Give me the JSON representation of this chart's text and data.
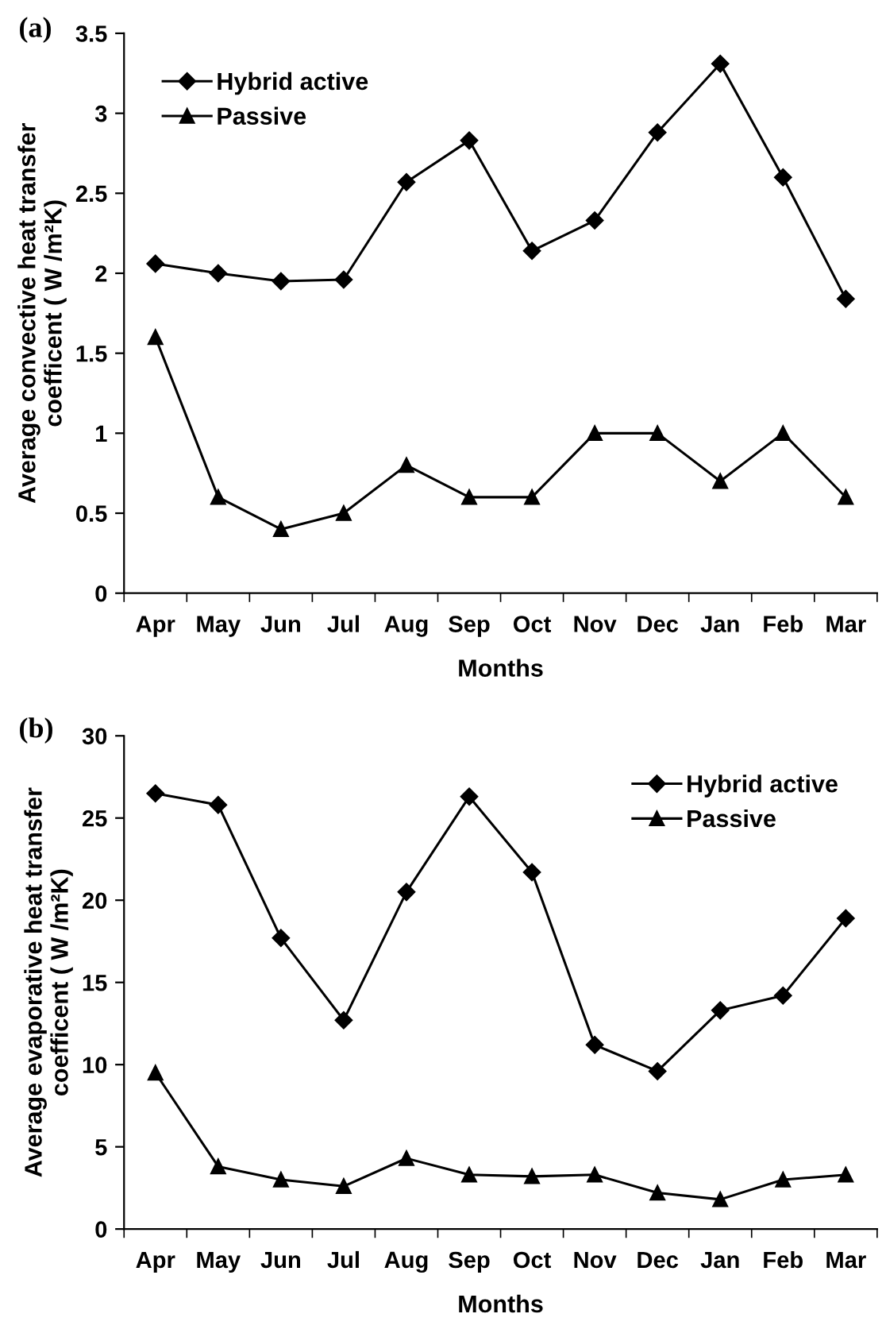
{
  "chart_data": [
    {
      "type": "line",
      "title": "(a)",
      "xlabel": "Months",
      "ylabel": "Average convective heat transfer\ncoefficent ( W /m²K)",
      "categories": [
        "Apr",
        "May",
        "Jun",
        "Jul",
        "Aug",
        "Sep",
        "Oct",
        "Nov",
        "Dec",
        "Jan",
        "Feb",
        "Mar"
      ],
      "series": [
        {
          "name": "Hybrid active",
          "color": "#000000",
          "marker": "diamond",
          "values": [
            2.06,
            2.0,
            1.95,
            1.96,
            2.57,
            2.83,
            2.14,
            2.33,
            2.88,
            3.31,
            2.6,
            1.84
          ]
        },
        {
          "name": "Passive",
          "color": "#000000",
          "marker": "triangle",
          "values": [
            1.6,
            0.6,
            0.4,
            0.5,
            0.8,
            0.6,
            0.6,
            1.0,
            1.0,
            0.7,
            1.0,
            0.6
          ]
        }
      ],
      "ylim": [
        0,
        3.5
      ],
      "yticks": [
        0,
        0.5,
        1,
        1.5,
        2,
        2.5,
        3,
        3.5
      ],
      "grid": false,
      "legend": "top left",
      "line_style": "solid"
    },
    {
      "type": "line",
      "title": "(b)",
      "xlabel": "Months",
      "ylabel": "Average evaporative heat transfer\ncoefficent ( W /m²K)",
      "categories": [
        "Apr",
        "May",
        "Jun",
        "Jul",
        "Aug",
        "Sep",
        "Oct",
        "Nov",
        "Dec",
        "Jan",
        "Feb",
        "Mar"
      ],
      "series": [
        {
          "name": "Hybrid active",
          "color": "#000000",
          "marker": "diamond",
          "values": [
            26.5,
            25.8,
            17.7,
            12.7,
            20.5,
            26.3,
            21.7,
            11.2,
            9.6,
            13.3,
            14.2,
            18.9
          ]
        },
        {
          "name": "Passive",
          "color": "#000000",
          "marker": "triangle",
          "values": [
            9.5,
            3.8,
            3.0,
            2.6,
            4.3,
            3.3,
            3.2,
            3.3,
            2.2,
            1.8,
            3.0,
            3.3
          ]
        }
      ],
      "ylim": [
        0,
        30
      ],
      "yticks": [
        0,
        5,
        10,
        15,
        20,
        25,
        30
      ],
      "grid": false,
      "legend": "top right",
      "line_style": "solid"
    }
  ]
}
